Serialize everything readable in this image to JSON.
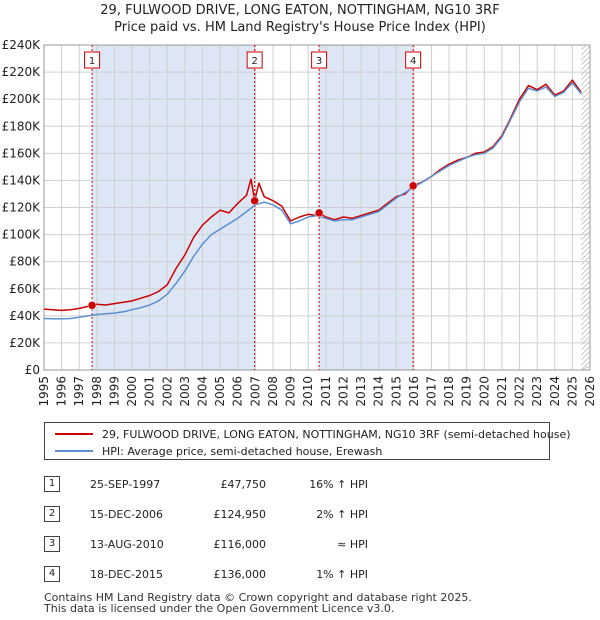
{
  "chart_data": {
    "type": "line",
    "title_line1": "29, FULWOOD DRIVE, LONG EATON, NOTTINGHAM, NG10 3RF",
    "title_line2": "Price paid vs. HM Land Registry's House Price Index (HPI)",
    "xlim": [
      1995,
      2026
    ],
    "ylim": [
      0,
      240000
    ],
    "x_ticks": [
      "1995",
      "1996",
      "1997",
      "1998",
      "1999",
      "2000",
      "2001",
      "2002",
      "2003",
      "2004",
      "2005",
      "2006",
      "2007",
      "2008",
      "2009",
      "2010",
      "2011",
      "2012",
      "2013",
      "2014",
      "2015",
      "2016",
      "2017",
      "2018",
      "2019",
      "2020",
      "2021",
      "2022",
      "2023",
      "2024",
      "2025",
      "2026"
    ],
    "y_ticks": [
      "£0",
      "£20K",
      "£40K",
      "£60K",
      "£80K",
      "£100K",
      "£120K",
      "£140K",
      "£160K",
      "£180K",
      "£200K",
      "£220K",
      "£240K"
    ],
    "series": [
      {
        "name": "29, FULWOOD DRIVE, LONG EATON, NOTTINGHAM, NG10 3RF (semi-detached house)",
        "color": "#cc0000",
        "x": [
          1995.0,
          1995.5,
          1996.0,
          1996.5,
          1997.0,
          1997.5,
          1997.73,
          1998.0,
          1998.5,
          1999.0,
          1999.5,
          2000.0,
          2000.5,
          2001.0,
          2001.5,
          2002.0,
          2002.5,
          2003.0,
          2003.5,
          2004.0,
          2004.5,
          2005.0,
          2005.5,
          2006.0,
          2006.5,
          2006.75,
          2006.96,
          2007.2,
          2007.5,
          2008.0,
          2008.5,
          2009.0,
          2009.5,
          2010.0,
          2010.5,
          2010.62,
          2011.0,
          2011.5,
          2012.0,
          2012.5,
          2013.0,
          2013.5,
          2014.0,
          2014.5,
          2015.0,
          2015.5,
          2015.96,
          2016.5,
          2017.0,
          2017.5,
          2018.0,
          2018.5,
          2019.0,
          2019.5,
          2020.0,
          2020.5,
          2021.0,
          2021.5,
          2022.0,
          2022.5,
          2023.0,
          2023.5,
          2024.0,
          2024.5,
          2025.0,
          2025.5
        ],
        "values": [
          45000,
          44500,
          44000,
          44500,
          45500,
          47000,
          47750,
          48500,
          48000,
          49000,
          50000,
          51000,
          53000,
          55000,
          58000,
          63000,
          75000,
          85000,
          98000,
          107000,
          113000,
          118000,
          116000,
          123000,
          129000,
          141000,
          124950,
          138000,
          128000,
          125000,
          121000,
          110000,
          113000,
          115000,
          114000,
          116000,
          113000,
          111000,
          113000,
          112000,
          114000,
          116000,
          118000,
          123000,
          128000,
          130000,
          136000,
          139000,
          143000,
          148000,
          152000,
          155000,
          157000,
          160000,
          161000,
          165000,
          173000,
          186000,
          200000,
          210000,
          207000,
          211000,
          203000,
          206000,
          214000,
          205000
        ]
      },
      {
        "name": "HPI: Average price, semi-detached house, Erewash",
        "color": "#5b8fd0",
        "x": [
          1995.0,
          1995.5,
          1996.0,
          1996.5,
          1997.0,
          1997.5,
          1998.0,
          1998.5,
          1999.0,
          1999.5,
          2000.0,
          2000.5,
          2001.0,
          2001.5,
          2002.0,
          2002.5,
          2003.0,
          2003.5,
          2004.0,
          2004.5,
          2005.0,
          2005.5,
          2006.0,
          2006.5,
          2007.0,
          2007.5,
          2008.0,
          2008.5,
          2009.0,
          2009.5,
          2010.0,
          2010.5,
          2011.0,
          2011.5,
          2012.0,
          2012.5,
          2013.0,
          2013.5,
          2014.0,
          2014.5,
          2015.0,
          2015.5,
          2016.0,
          2016.5,
          2017.0,
          2017.5,
          2018.0,
          2018.5,
          2019.0,
          2019.5,
          2020.0,
          2020.5,
          2021.0,
          2021.5,
          2022.0,
          2022.5,
          2023.0,
          2023.5,
          2024.0,
          2024.5,
          2025.0,
          2025.5
        ],
        "values": [
          38000,
          37800,
          37700,
          38000,
          39000,
          40000,
          41000,
          41500,
          42000,
          43000,
          44500,
          46000,
          48000,
          51000,
          56000,
          64000,
          73000,
          84000,
          93000,
          100000,
          104000,
          108000,
          112000,
          117000,
          122000,
          124000,
          122000,
          118000,
          108000,
          110000,
          113000,
          114000,
          112000,
          110000,
          111000,
          111000,
          113000,
          115000,
          117000,
          122000,
          127000,
          131000,
          135000,
          139000,
          143000,
          147000,
          151000,
          154000,
          157000,
          159000,
          160000,
          164000,
          172000,
          185000,
          198000,
          208000,
          206000,
          209000,
          202000,
          205000,
          212000,
          204000
        ]
      }
    ],
    "sales": [
      {
        "num": "1",
        "x": 1997.73,
        "y": 47750
      },
      {
        "num": "2",
        "x": 2006.96,
        "y": 124950
      },
      {
        "num": "3",
        "x": 2010.62,
        "y": 116000
      },
      {
        "num": "4",
        "x": 2015.96,
        "y": 136000
      }
    ],
    "hatch_start": 2025.5
  },
  "legend": {
    "property_label": "29, FULWOOD DRIVE, LONG EATON, NOTTINGHAM, NG10 3RF (semi-detached house)",
    "hpi_label": "HPI: Average price, semi-detached house, Erewash"
  },
  "transactions": [
    {
      "num": "1",
      "date": "25-SEP-1997",
      "price": "£47,750",
      "hpi": "16% ↑ HPI"
    },
    {
      "num": "2",
      "date": "15-DEC-2006",
      "price": "£124,950",
      "hpi": "2% ↑ HPI"
    },
    {
      "num": "3",
      "date": "13-AUG-2010",
      "price": "£116,000",
      "hpi": "≈ HPI"
    },
    {
      "num": "4",
      "date": "18-DEC-2015",
      "price": "£136,000",
      "hpi": "1% ↑ HPI"
    }
  ],
  "footer": {
    "line1": "Contains HM Land Registry data © Crown copyright and database right 2025.",
    "line2": "This data is licensed under the Open Government Licence v3.0."
  },
  "colors": {
    "property": "#cc0000",
    "hpi": "#5b8fd0",
    "shade": "#dce6f5",
    "grid": "#d0d0d0"
  }
}
